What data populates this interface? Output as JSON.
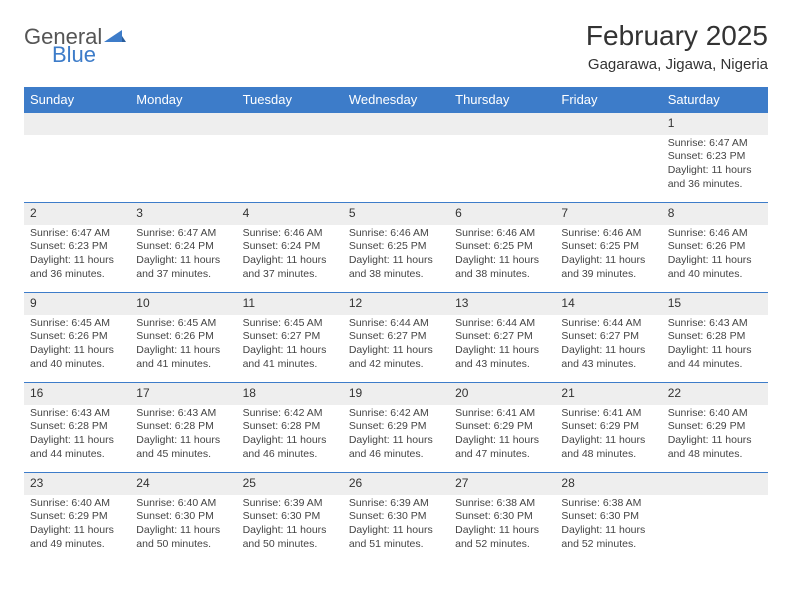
{
  "brand": {
    "name_part1": "General",
    "name_part2": "Blue",
    "icon_color": "#3d7cc9"
  },
  "title": "February 2025",
  "location": "Gagarawa, Jigawa, Nigeria",
  "colors": {
    "header_bg": "#3d7cc9",
    "header_text": "#ffffff",
    "daynum_bg": "#eeeeee",
    "row_border": "#3d7cc9",
    "body_text": "#444444"
  },
  "day_headers": [
    "Sunday",
    "Monday",
    "Tuesday",
    "Wednesday",
    "Thursday",
    "Friday",
    "Saturday"
  ],
  "weeks": [
    [
      {
        "n": "",
        "empty": true
      },
      {
        "n": "",
        "empty": true
      },
      {
        "n": "",
        "empty": true
      },
      {
        "n": "",
        "empty": true
      },
      {
        "n": "",
        "empty": true
      },
      {
        "n": "",
        "empty": true
      },
      {
        "n": "1",
        "sunrise": "Sunrise: 6:47 AM",
        "sunset": "Sunset: 6:23 PM",
        "daylight1": "Daylight: 11 hours",
        "daylight2": "and 36 minutes."
      }
    ],
    [
      {
        "n": "2",
        "sunrise": "Sunrise: 6:47 AM",
        "sunset": "Sunset: 6:23 PM",
        "daylight1": "Daylight: 11 hours",
        "daylight2": "and 36 minutes."
      },
      {
        "n": "3",
        "sunrise": "Sunrise: 6:47 AM",
        "sunset": "Sunset: 6:24 PM",
        "daylight1": "Daylight: 11 hours",
        "daylight2": "and 37 minutes."
      },
      {
        "n": "4",
        "sunrise": "Sunrise: 6:46 AM",
        "sunset": "Sunset: 6:24 PM",
        "daylight1": "Daylight: 11 hours",
        "daylight2": "and 37 minutes."
      },
      {
        "n": "5",
        "sunrise": "Sunrise: 6:46 AM",
        "sunset": "Sunset: 6:25 PM",
        "daylight1": "Daylight: 11 hours",
        "daylight2": "and 38 minutes."
      },
      {
        "n": "6",
        "sunrise": "Sunrise: 6:46 AM",
        "sunset": "Sunset: 6:25 PM",
        "daylight1": "Daylight: 11 hours",
        "daylight2": "and 38 minutes."
      },
      {
        "n": "7",
        "sunrise": "Sunrise: 6:46 AM",
        "sunset": "Sunset: 6:25 PM",
        "daylight1": "Daylight: 11 hours",
        "daylight2": "and 39 minutes."
      },
      {
        "n": "8",
        "sunrise": "Sunrise: 6:46 AM",
        "sunset": "Sunset: 6:26 PM",
        "daylight1": "Daylight: 11 hours",
        "daylight2": "and 40 minutes."
      }
    ],
    [
      {
        "n": "9",
        "sunrise": "Sunrise: 6:45 AM",
        "sunset": "Sunset: 6:26 PM",
        "daylight1": "Daylight: 11 hours",
        "daylight2": "and 40 minutes."
      },
      {
        "n": "10",
        "sunrise": "Sunrise: 6:45 AM",
        "sunset": "Sunset: 6:26 PM",
        "daylight1": "Daylight: 11 hours",
        "daylight2": "and 41 minutes."
      },
      {
        "n": "11",
        "sunrise": "Sunrise: 6:45 AM",
        "sunset": "Sunset: 6:27 PM",
        "daylight1": "Daylight: 11 hours",
        "daylight2": "and 41 minutes."
      },
      {
        "n": "12",
        "sunrise": "Sunrise: 6:44 AM",
        "sunset": "Sunset: 6:27 PM",
        "daylight1": "Daylight: 11 hours",
        "daylight2": "and 42 minutes."
      },
      {
        "n": "13",
        "sunrise": "Sunrise: 6:44 AM",
        "sunset": "Sunset: 6:27 PM",
        "daylight1": "Daylight: 11 hours",
        "daylight2": "and 43 minutes."
      },
      {
        "n": "14",
        "sunrise": "Sunrise: 6:44 AM",
        "sunset": "Sunset: 6:27 PM",
        "daylight1": "Daylight: 11 hours",
        "daylight2": "and 43 minutes."
      },
      {
        "n": "15",
        "sunrise": "Sunrise: 6:43 AM",
        "sunset": "Sunset: 6:28 PM",
        "daylight1": "Daylight: 11 hours",
        "daylight2": "and 44 minutes."
      }
    ],
    [
      {
        "n": "16",
        "sunrise": "Sunrise: 6:43 AM",
        "sunset": "Sunset: 6:28 PM",
        "daylight1": "Daylight: 11 hours",
        "daylight2": "and 44 minutes."
      },
      {
        "n": "17",
        "sunrise": "Sunrise: 6:43 AM",
        "sunset": "Sunset: 6:28 PM",
        "daylight1": "Daylight: 11 hours",
        "daylight2": "and 45 minutes."
      },
      {
        "n": "18",
        "sunrise": "Sunrise: 6:42 AM",
        "sunset": "Sunset: 6:28 PM",
        "daylight1": "Daylight: 11 hours",
        "daylight2": "and 46 minutes."
      },
      {
        "n": "19",
        "sunrise": "Sunrise: 6:42 AM",
        "sunset": "Sunset: 6:29 PM",
        "daylight1": "Daylight: 11 hours",
        "daylight2": "and 46 minutes."
      },
      {
        "n": "20",
        "sunrise": "Sunrise: 6:41 AM",
        "sunset": "Sunset: 6:29 PM",
        "daylight1": "Daylight: 11 hours",
        "daylight2": "and 47 minutes."
      },
      {
        "n": "21",
        "sunrise": "Sunrise: 6:41 AM",
        "sunset": "Sunset: 6:29 PM",
        "daylight1": "Daylight: 11 hours",
        "daylight2": "and 48 minutes."
      },
      {
        "n": "22",
        "sunrise": "Sunrise: 6:40 AM",
        "sunset": "Sunset: 6:29 PM",
        "daylight1": "Daylight: 11 hours",
        "daylight2": "and 48 minutes."
      }
    ],
    [
      {
        "n": "23",
        "sunrise": "Sunrise: 6:40 AM",
        "sunset": "Sunset: 6:29 PM",
        "daylight1": "Daylight: 11 hours",
        "daylight2": "and 49 minutes."
      },
      {
        "n": "24",
        "sunrise": "Sunrise: 6:40 AM",
        "sunset": "Sunset: 6:30 PM",
        "daylight1": "Daylight: 11 hours",
        "daylight2": "and 50 minutes."
      },
      {
        "n": "25",
        "sunrise": "Sunrise: 6:39 AM",
        "sunset": "Sunset: 6:30 PM",
        "daylight1": "Daylight: 11 hours",
        "daylight2": "and 50 minutes."
      },
      {
        "n": "26",
        "sunrise": "Sunrise: 6:39 AM",
        "sunset": "Sunset: 6:30 PM",
        "daylight1": "Daylight: 11 hours",
        "daylight2": "and 51 minutes."
      },
      {
        "n": "27",
        "sunrise": "Sunrise: 6:38 AM",
        "sunset": "Sunset: 6:30 PM",
        "daylight1": "Daylight: 11 hours",
        "daylight2": "and 52 minutes."
      },
      {
        "n": "28",
        "sunrise": "Sunrise: 6:38 AM",
        "sunset": "Sunset: 6:30 PM",
        "daylight1": "Daylight: 11 hours",
        "daylight2": "and 52 minutes."
      },
      {
        "n": "",
        "empty": true
      }
    ]
  ]
}
